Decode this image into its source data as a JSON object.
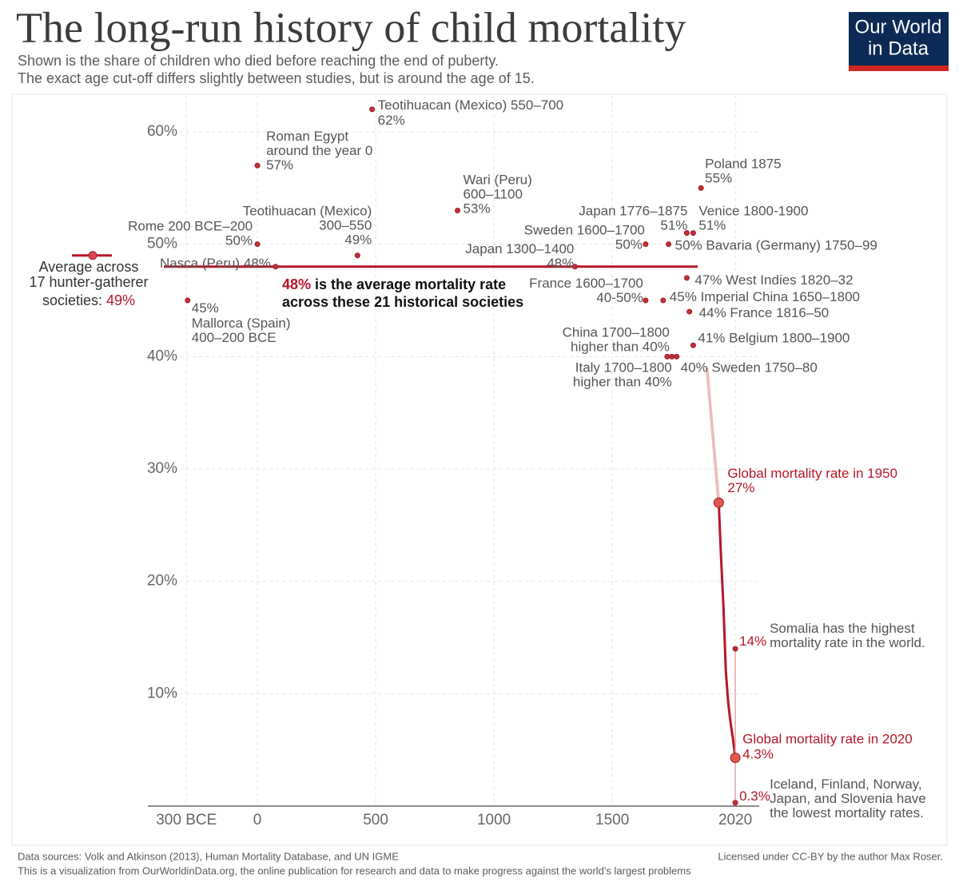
{
  "chart_data": {
    "type": "scatter",
    "title": "The long-run history of child mortality",
    "subtitle": [
      "Shown is the share of children who died before reaching the end of puberty.",
      "The exact age cut-off differs slightly between studies, but is around the age of 15."
    ],
    "logo": [
      "Our World",
      "in Data"
    ],
    "color": "#c0303b",
    "xlim": [
      -463,
      2121
    ],
    "xticks": [
      {
        "value": -300,
        "label": "300 BCE"
      },
      0,
      500,
      1000,
      1500,
      2020
    ],
    "ylim": [
      0,
      63.2
    ],
    "yticks": [
      {
        "value": 10,
        "label": "10%"
      },
      {
        "value": 20,
        "label": "20%"
      },
      {
        "value": 30,
        "label": "30%"
      },
      {
        "value": 40,
        "label": "40%"
      },
      {
        "value": 50,
        "label": "50%"
      },
      {
        "value": 60,
        "label": "60%"
      }
    ],
    "grid": true,
    "points": [
      {
        "x": 485,
        "y": 62,
        "label": [
          "Teotihuacan (Mexico) 550–700"
        ],
        "value_label": "62%"
      },
      {
        "x": 0,
        "y": 57,
        "label": [
          "Roman Egypt",
          "around the year 0"
        ],
        "value_label": "57%"
      },
      {
        "x": 1875,
        "y": 55,
        "label": [
          "Poland 1875"
        ],
        "value_label": "55%"
      },
      {
        "x": 846,
        "y": 53,
        "label": [
          "Wari (Peru)",
          "600–1100"
        ],
        "value_label": "53%"
      },
      {
        "x": 1815,
        "y": 51,
        "label": [
          "Japan 1776–1875"
        ],
        "value_label": "51%"
      },
      {
        "x": 1842,
        "y": 51,
        "label": [
          "Venice 1800-1900"
        ],
        "value_label": "51%"
      },
      {
        "x": 0,
        "y": 50,
        "label": [
          "Rome 200 BCE–200"
        ],
        "value_label": "50%"
      },
      {
        "x": 1641,
        "y": 50,
        "label": [
          "Sweden 1600–1700"
        ],
        "value_label": "50%"
      },
      {
        "x": 1738,
        "y": 50,
        "label": [
          "Bavaria (Germany) 1750–99"
        ],
        "value_label": "50%"
      },
      {
        "x": 423,
        "y": 49,
        "label": [
          "Teotihuacan (Mexico)",
          "300–550"
        ],
        "value_label": "49%"
      },
      {
        "x": 77,
        "y": 48,
        "label": [
          "Nasca (Peru)"
        ],
        "value_label": "48%"
      },
      {
        "x": 1342,
        "y": 48,
        "label": [
          "Japan 1300–1400"
        ],
        "value_label": "48%"
      },
      {
        "x": 1815,
        "y": 47,
        "label": [
          "West Indies 1820–32"
        ],
        "value_label": "47%"
      },
      {
        "x": 1641,
        "y": 45,
        "label": [
          "France 1600–1700"
        ],
        "value_label": "40-50%"
      },
      {
        "x": 1715,
        "y": 45,
        "label": [
          "Imperial China 1650–1800"
        ],
        "value_label": "45%"
      },
      {
        "x": 1826,
        "y": 44,
        "label": [
          "France 1816–50"
        ],
        "value_label": "44%"
      },
      {
        "x": -295,
        "y": 45,
        "label": [
          "Mallorca (Spain)",
          "400–200 BCE"
        ],
        "value_label": "45%"
      },
      {
        "x": 1842,
        "y": 41,
        "label": [
          "Belgium 1800–1900"
        ],
        "value_label": "41%"
      },
      {
        "x": 1732,
        "y": 40,
        "label": [
          "China 1700–1800"
        ],
        "value_label": "higher than 40%"
      },
      {
        "x": 1752,
        "y": 40,
        "label": [
          "Italy 1700–1800"
        ],
        "value_label": "higher than 40%"
      },
      {
        "x": 1772,
        "y": 40,
        "label": [
          "Sweden 1750–80"
        ],
        "value_label": "40%"
      }
    ],
    "hunter_gatherer": {
      "label": [
        "Average across",
        "17 hunter-gatherer",
        "societies:"
      ],
      "value": 49,
      "value_label": "49%"
    },
    "average": {
      "label": [
        "is the average mortality rate",
        "across these 21 historical societies"
      ],
      "value": 48,
      "value_label": "48%"
    },
    "global": {
      "x": [
        1900,
        1950,
        1960,
        1970,
        1980,
        1990,
        2000,
        2010,
        2020
      ],
      "values": [
        39,
        27,
        22,
        17.7,
        12,
        9.2,
        7.4,
        6,
        4.3
      ],
      "color": "#b5172a"
    },
    "highlights": [
      {
        "x": 1950,
        "y": 27,
        "label": [
          "Global mortality rate in 1950"
        ],
        "value_label": "27%"
      },
      {
        "x": 2020,
        "y": 4.3,
        "label": [
          "Global mortality rate in 2020"
        ],
        "value_label": "4.3%"
      }
    ],
    "extremes": [
      {
        "x": 2020,
        "y": 14,
        "label": [
          "Somalia has the highest",
          "mortality rate in the world."
        ],
        "value_label": "14%"
      },
      {
        "x": 2020,
        "y": 0.3,
        "label": [
          "Iceland, Finland, Norway,",
          "Japan, and Slovenia have",
          "the lowest mortality rates."
        ],
        "value_label": "0.3%"
      }
    ],
    "sources": "Data sources: Volk and Atkinson (2013), Human Mortality Database, and UN IGME",
    "note": "This is a visualization from OurWorldinData.org, the online publication for research and data to make progress against the world's largest problems",
    "license": "Licensed under CC-BY by the author Max Roser."
  }
}
